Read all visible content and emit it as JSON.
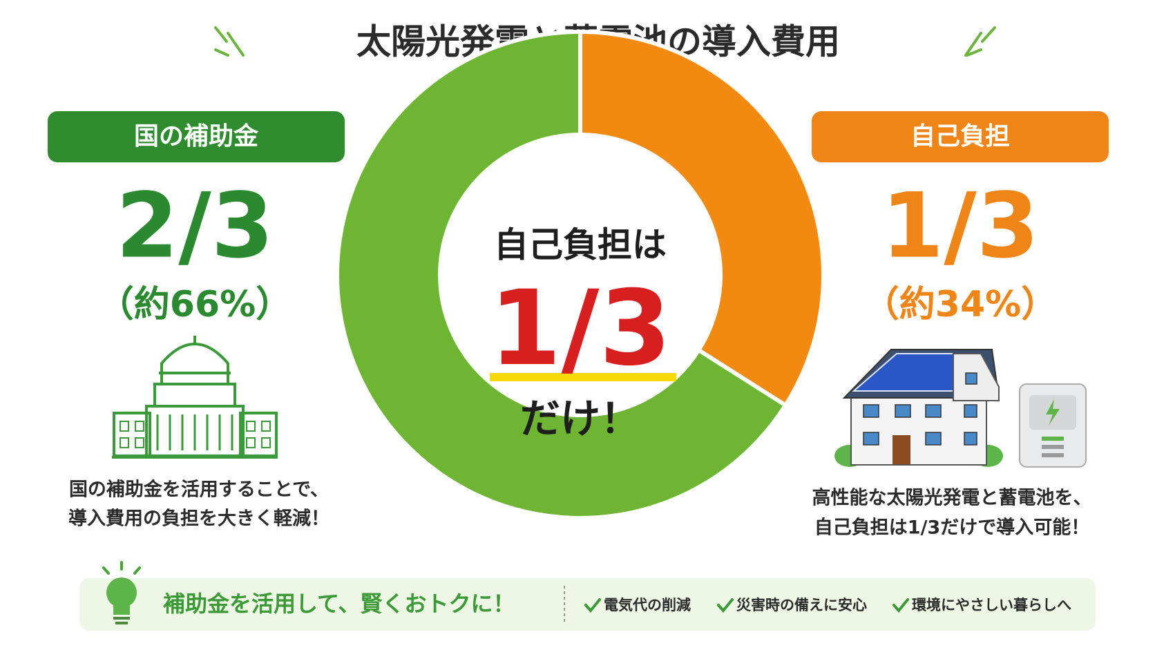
{
  "chart_data": {
    "type": "donut",
    "title": "太陽光発電と蓄電池の導入費用",
    "categories": [
      "国の補助金",
      "自己負担"
    ],
    "values": [
      66,
      34
    ],
    "value_labels": [
      "（約66%）",
      "（約34%）"
    ],
    "fraction_labels": [
      "2/3",
      "1/3"
    ],
    "colors": [
      "#6db532",
      "#f28a12"
    ],
    "center_text": [
      "自己負担は",
      "1/3",
      "だけ！"
    ],
    "descriptions": [
      [
        "国の補助金を活用することで、",
        "導入費用の負担を大きく軽減！"
      ],
      [
        "高性能な太陽光発電と蓄電池を、",
        "自己負担は1/3だけで導入可能！"
      ]
    ]
  },
  "footer": {
    "message": "補助金を活用して、賢くおトクに！",
    "points": [
      "電気代の削減",
      "災害時の備えに安心",
      "環境にやさしい暮らしへ"
    ]
  }
}
